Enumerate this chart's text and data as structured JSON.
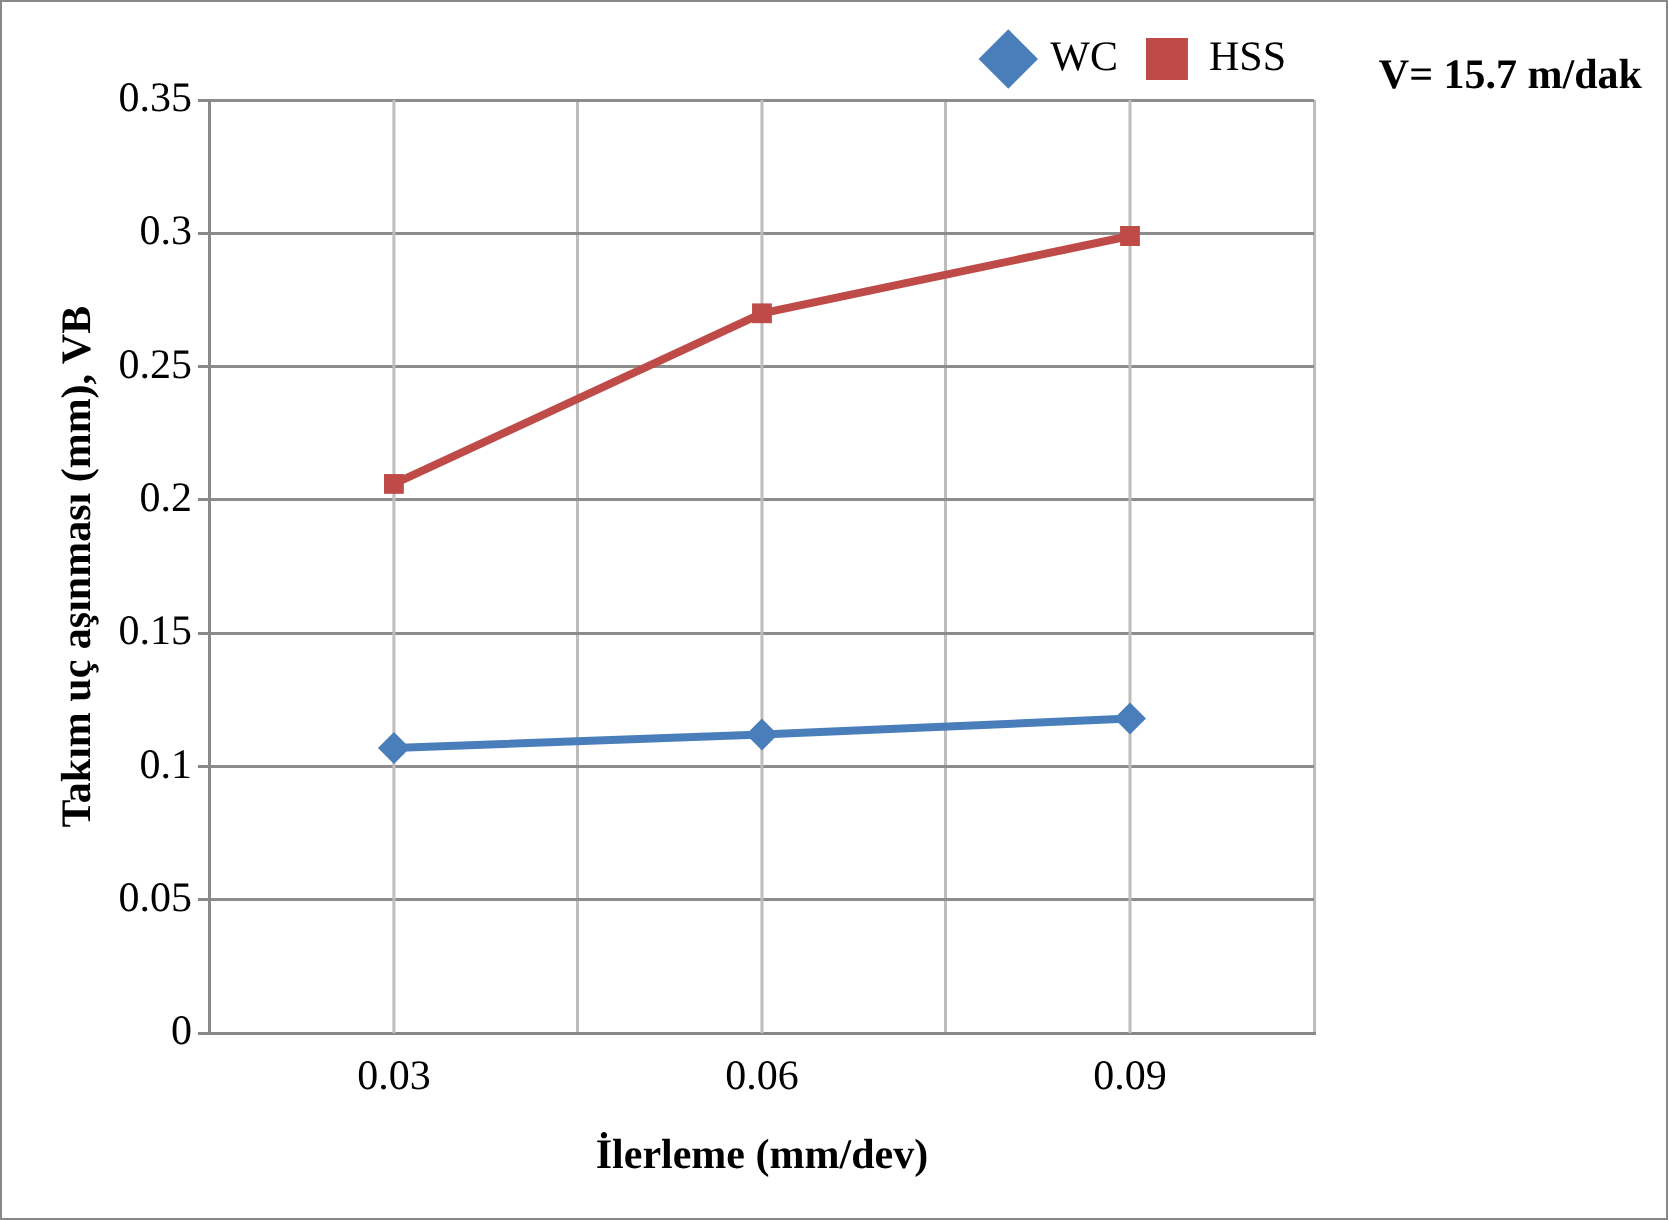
{
  "chart_data": {
    "type": "line",
    "xlabel": "İlerleme (mm/dev)",
    "ylabel": "Takım uç aşınması (mm), VB",
    "categories": [
      "0.03",
      "0.06",
      "0.09"
    ],
    "series": [
      {
        "name": "WC",
        "color": "#4a7ebb",
        "marker": "diamond",
        "values": [
          0.107,
          0.112,
          0.118
        ]
      },
      {
        "name": "HSS",
        "color": "#be4b48",
        "marker": "square",
        "values": [
          0.206,
          0.27,
          0.299
        ]
      }
    ],
    "ylim": [
      0,
      0.35
    ],
    "yticks": [
      0,
      0.05,
      0.1,
      0.15,
      0.2,
      0.25,
      0.3,
      0.35
    ],
    "grid": true,
    "legend": "top right",
    "line_style": "solid",
    "annotations": [
      "V= 15.7 m/dak"
    ]
  }
}
